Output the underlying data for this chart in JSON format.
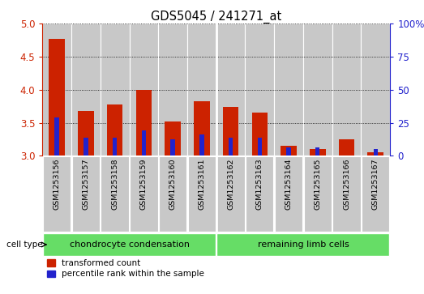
{
  "title": "GDS5045 / 241271_at",
  "samples": [
    "GSM1253156",
    "GSM1253157",
    "GSM1253158",
    "GSM1253159",
    "GSM1253160",
    "GSM1253161",
    "GSM1253162",
    "GSM1253163",
    "GSM1253164",
    "GSM1253165",
    "GSM1253166",
    "GSM1253167"
  ],
  "red_values": [
    4.77,
    3.68,
    3.78,
    4.0,
    3.52,
    3.83,
    3.74,
    3.65,
    3.15,
    3.1,
    3.25,
    3.05
  ],
  "blue_values": [
    3.58,
    3.27,
    3.27,
    3.38,
    3.25,
    3.32,
    3.28,
    3.27,
    3.13,
    3.13,
    3.0,
    3.1
  ],
  "ymin": 3.0,
  "ymax": 5.0,
  "yticks_left": [
    3.0,
    3.5,
    4.0,
    4.5,
    5.0
  ],
  "yticks_right": [
    0,
    25,
    50,
    75,
    100
  ],
  "right_yticklabels": [
    "0",
    "25",
    "50",
    "75",
    "100%"
  ],
  "red_color": "#cc2200",
  "blue_color": "#2222cc",
  "bg_color": "#ffffff",
  "bar_bg_color": "#c8c8c8",
  "green_color": "#66dd66",
  "cell_types": [
    "chondrocyte condensation",
    "remaining limb cells"
  ],
  "cell_type_label": "cell type",
  "legend_items": [
    "transformed count",
    "percentile rank within the sample"
  ],
  "legend_colors": [
    "#cc2200",
    "#2222cc"
  ],
  "left_axis_color": "#cc2200",
  "right_axis_color": "#2222cc",
  "n_group1": 6,
  "n_group2": 6,
  "bar_width": 0.55,
  "blue_bar_width": 0.15
}
